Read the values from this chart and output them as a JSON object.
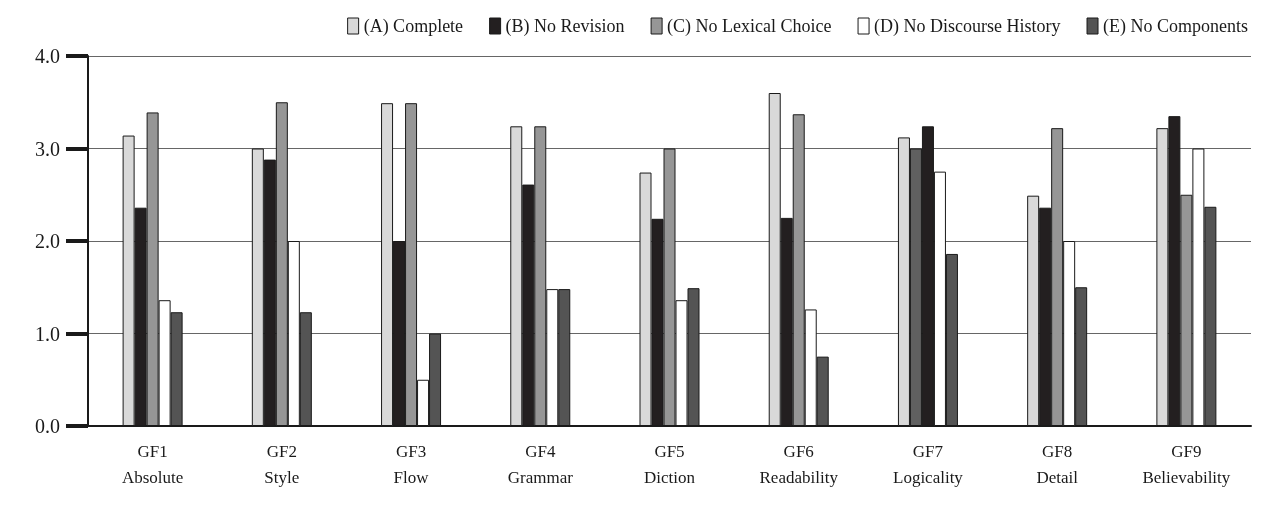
{
  "chart_data": {
    "type": "bar",
    "categories": [
      "GF1\nAbsolute",
      "GF2\nStyle",
      "GF3\nFlow",
      "GF4\nGrammar",
      "GF5\nDiction",
      "GF6\nReadability",
      "GF7\nLogicality",
      "GF8\nDetail",
      "GF9\nBelievability"
    ],
    "series": [
      {
        "name": "(A) Complete",
        "color": "#d9d9d9",
        "values": [
          3.14,
          3.0,
          3.49,
          3.24,
          2.74,
          3.6,
          3.12,
          2.49,
          3.22
        ]
      },
      {
        "name": "(B) No Revision",
        "color": "#231f20",
        "colors": [
          "#231f20",
          "#231f20",
          "#231f20",
          "#231f20",
          "#231f20",
          "#231f20",
          "#606060",
          "#231f20",
          "#231f20"
        ],
        "values": [
          2.36,
          2.88,
          2.0,
          2.61,
          2.24,
          2.25,
          3.0,
          2.36,
          3.35
        ]
      },
      {
        "name": "(C) No Lexical Choice",
        "color": "#969696",
        "colors": [
          "#969696",
          "#969696",
          "#969696",
          "#969696",
          "#969696",
          "#969696",
          "#231f20",
          "#969696",
          "#969696"
        ],
        "values": [
          3.39,
          3.5,
          3.49,
          3.24,
          3.0,
          3.37,
          3.24,
          3.22,
          2.5
        ]
      },
      {
        "name": "(D) No Discourse History",
        "color": "#ffffff",
        "values": [
          1.36,
          2.0,
          0.5,
          1.48,
          1.36,
          1.26,
          2.75,
          2.0,
          3.0
        ]
      },
      {
        "name": "(E) No Components",
        "color": "#545454",
        "values": [
          1.23,
          1.23,
          1.0,
          1.48,
          1.49,
          0.75,
          1.86,
          1.5,
          2.37
        ]
      }
    ],
    "ylim": [
      0,
      4
    ],
    "yticks": [
      {
        "value": 0,
        "label": "0.0"
      },
      {
        "value": 1,
        "label": "1.0"
      },
      {
        "value": 2,
        "label": "2.0"
      },
      {
        "value": 3,
        "label": "3.0"
      },
      {
        "value": 4,
        "label": "4.0"
      }
    ],
    "grid": "y",
    "legend": "top"
  }
}
